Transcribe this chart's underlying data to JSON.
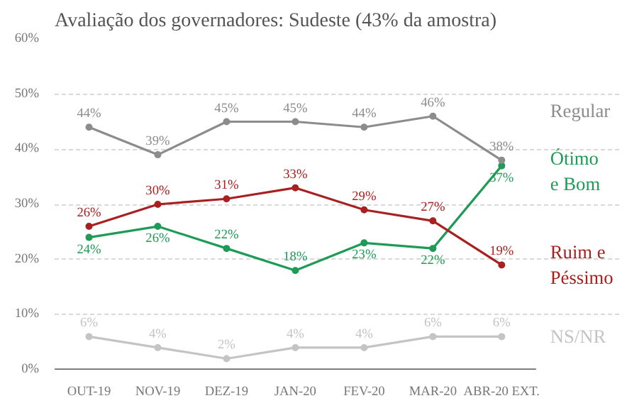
{
  "chart_data": {
    "type": "line",
    "title": "Avaliação dos governadores: Sudeste (43% da amostra)",
    "categories": [
      "OUT-19",
      "NOV-19",
      "DEZ-19",
      "JAN-20",
      "FEV-20",
      "MAR-20",
      "ABR-20 EXT."
    ],
    "series": [
      {
        "name": "Ótimo\ne Bom",
        "color": "#1e9b57",
        "values": [
          24,
          26,
          22,
          18,
          23,
          22,
          37
        ],
        "value_labels": [
          "24%",
          "26%",
          "22%",
          "18%",
          "23%",
          "22%",
          "37%"
        ]
      },
      {
        "name": "Regular",
        "color": "#8c8c8c",
        "values": [
          44,
          39,
          45,
          45,
          44,
          46,
          38
        ],
        "value_labels": [
          "44%",
          "39%",
          "45%",
          "45%",
          "44%",
          "46%",
          "38%"
        ]
      },
      {
        "name": "Ruim e\nPéssimo",
        "color": "#a8201f",
        "values": [
          26,
          30,
          31,
          33,
          29,
          27,
          19
        ],
        "value_labels": [
          "26%",
          "30%",
          "31%",
          "33%",
          "29%",
          "27%",
          "19%"
        ]
      },
      {
        "name": "NS/NR",
        "color": "#c4c4c4",
        "values": [
          6,
          4,
          2,
          4,
          4,
          6,
          6
        ],
        "value_labels": [
          "6%",
          "4%",
          "2%",
          "4%",
          "4%",
          "6%",
          "6%"
        ]
      }
    ],
    "ylim": [
      0,
      60
    ],
    "yticks": [
      {
        "value": 0,
        "label": "0%"
      },
      {
        "value": 10,
        "label": "10%"
      },
      {
        "value": 20,
        "label": "20%"
      },
      {
        "value": 30,
        "label": "30%"
      },
      {
        "value": 40,
        "label": "40%"
      },
      {
        "value": 50,
        "label": "50%"
      },
      {
        "value": 60,
        "label": "60%"
      }
    ],
    "grid": "y",
    "marker": "circle",
    "line_style": "solid"
  }
}
